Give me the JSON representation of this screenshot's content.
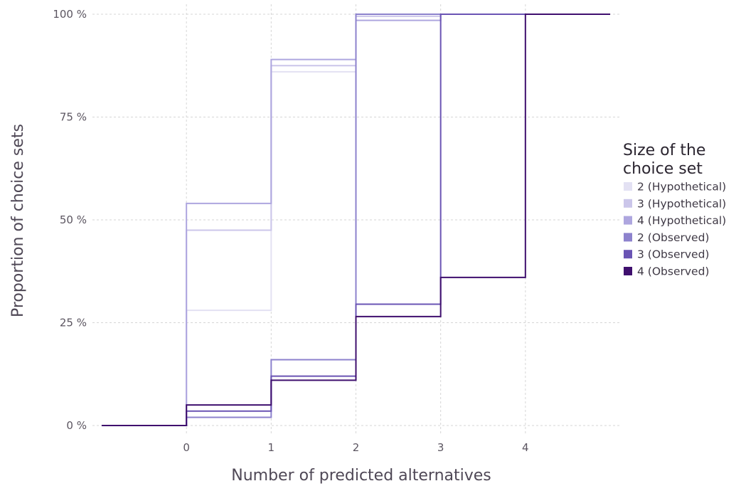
{
  "chart_data": {
    "type": "line",
    "step": true,
    "xlabel": "Number of predicted alternatives",
    "ylabel": "Proportion of choice sets",
    "xlim": [
      -1,
      5
    ],
    "ylim": [
      0,
      100
    ],
    "x_ticks": [
      0,
      1,
      2,
      3,
      4
    ],
    "x_tick_labels": [
      "0",
      "1",
      "2",
      "3",
      "4"
    ],
    "y_ticks": [
      0,
      25,
      50,
      75,
      100
    ],
    "y_tick_labels": [
      "0 %",
      "25 %",
      "50 %",
      "75 %",
      "100 %"
    ],
    "grid": true,
    "legend": {
      "title_lines": [
        "Size of the",
        "choice set"
      ],
      "placement": "right"
    },
    "series": [
      {
        "name": "2 (Hypothetical)",
        "color": "#e3e1f3",
        "x": [
          -1,
          0,
          1,
          2,
          5
        ],
        "y": [
          0,
          28,
          86,
          100,
          100
        ]
      },
      {
        "name": "3 (Hypothetical)",
        "color": "#cbc6ea",
        "x": [
          -1,
          0,
          1,
          2,
          3,
          5
        ],
        "y": [
          0,
          47.5,
          87.5,
          99.5,
          100,
          100
        ]
      },
      {
        "name": "4 (Hypothetical)",
        "color": "#aea6df",
        "x": [
          -1,
          0,
          1,
          2,
          3,
          5
        ],
        "y": [
          0,
          54,
          89,
          98.5,
          100,
          100
        ]
      },
      {
        "name": "2 (Observed)",
        "color": "#8d82cd",
        "x": [
          -1,
          0,
          1,
          2,
          5
        ],
        "y": [
          0,
          2,
          16,
          100,
          100
        ]
      },
      {
        "name": "3 (Observed)",
        "color": "#6a54b4",
        "x": [
          -1,
          0,
          1,
          2,
          3,
          5
        ],
        "y": [
          0,
          3.5,
          12,
          29.5,
          100,
          100
        ]
      },
      {
        "name": "4 (Observed)",
        "color": "#3f0f6e",
        "x": [
          -1,
          0,
          1,
          2,
          3,
          4,
          5
        ],
        "y": [
          0,
          5,
          11,
          26.5,
          36,
          100,
          100
        ]
      }
    ]
  }
}
